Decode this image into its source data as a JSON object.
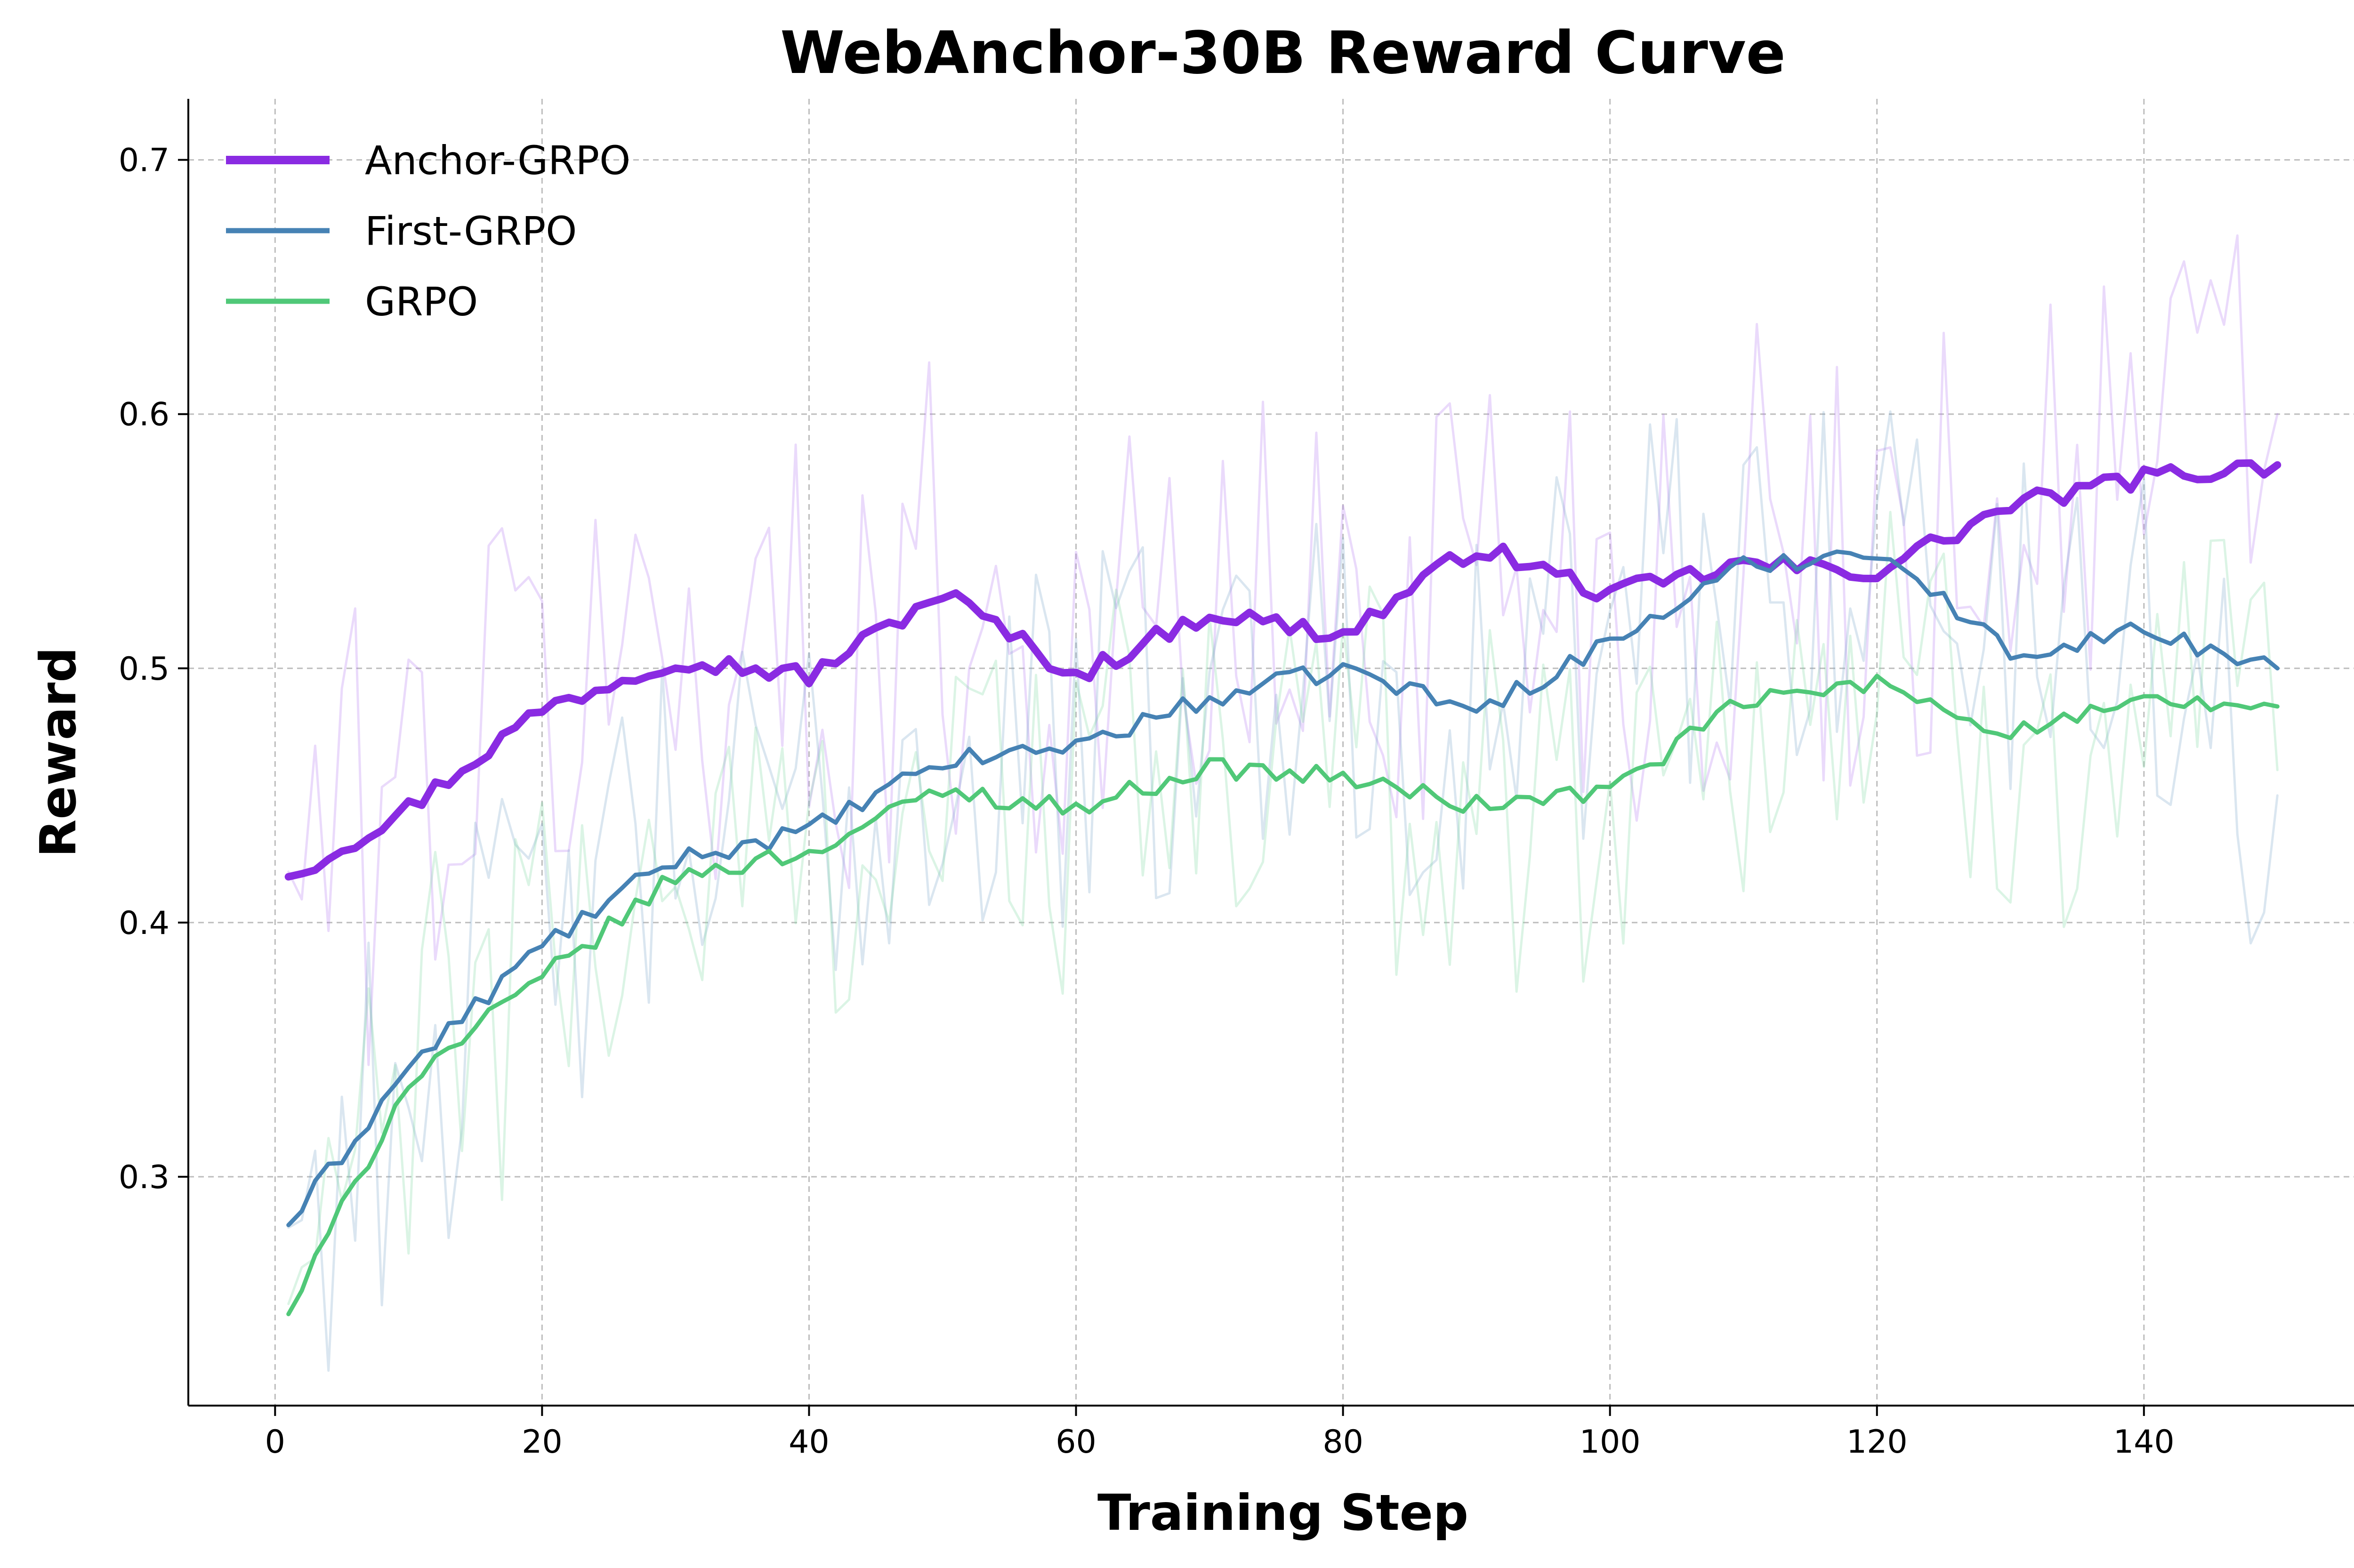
{
  "chart_data": {
    "type": "line",
    "title": "WebAnchor-30B Reward Curve",
    "xlabel": "Training Step",
    "ylabel": "Reward",
    "xlim": [
      -6.5,
      157.5
    ],
    "ylim": [
      0.21,
      0.724
    ],
    "xticks": [
      0,
      20,
      40,
      60,
      80,
      100,
      120,
      140
    ],
    "yticks": [
      0.3,
      0.4,
      0.5,
      0.6,
      0.7
    ],
    "xtick_labels": [
      "0",
      "20",
      "40",
      "60",
      "80",
      "100",
      "120",
      "140"
    ],
    "ytick_labels": [
      "0.3",
      "0.4",
      "0.5",
      "0.6",
      "0.7"
    ],
    "grid": true,
    "legend_position": "top-left",
    "x_anchors": [
      1,
      10,
      20,
      30,
      40,
      50,
      60,
      70,
      80,
      90,
      100,
      110,
      120,
      130,
      140,
      150
    ],
    "series": [
      {
        "name": "Anchor-GRPO",
        "color": "#8a2be2",
        "role": "smoothed",
        "anchors": [
          0.418,
          0.445,
          0.484,
          0.504,
          0.497,
          0.53,
          0.497,
          0.522,
          0.513,
          0.548,
          0.529,
          0.541,
          0.538,
          0.564,
          0.575,
          0.58
        ],
        "noise": 0.004
      },
      {
        "name": "First-GRPO",
        "color": "#4682b4",
        "role": "smoothed",
        "anchors": [
          0.281,
          0.343,
          0.391,
          0.425,
          0.436,
          0.463,
          0.47,
          0.488,
          0.5,
          0.483,
          0.51,
          0.54,
          0.547,
          0.506,
          0.515,
          0.5
        ],
        "noise": 0.004
      },
      {
        "name": "GRPO",
        "color": "#50c878",
        "role": "smoothed",
        "anchors": [
          0.246,
          0.338,
          0.378,
          0.418,
          0.428,
          0.452,
          0.445,
          0.461,
          0.457,
          0.446,
          0.452,
          0.487,
          0.494,
          0.475,
          0.486,
          0.485
        ],
        "noise": 0.004
      },
      {
        "name": "Anchor-GRPO (raw)",
        "color": "#b57bf0",
        "role": "raw",
        "anchors": [
          0.42,
          0.45,
          0.49,
          0.51,
          0.5,
          0.53,
          0.5,
          0.52,
          0.51,
          0.55,
          0.53,
          0.54,
          0.54,
          0.57,
          0.58,
          0.6
        ],
        "noise": 0.06
      },
      {
        "name": "First-GRPO (raw)",
        "color": "#7aa7c9",
        "role": "raw",
        "anchors": [
          0.28,
          0.34,
          0.39,
          0.43,
          0.44,
          0.46,
          0.47,
          0.49,
          0.5,
          0.48,
          0.51,
          0.54,
          0.55,
          0.51,
          0.52,
          0.45
        ],
        "noise": 0.05
      },
      {
        "name": "GRPO (raw)",
        "color": "#7fd9a0",
        "role": "raw",
        "anchors": [
          0.25,
          0.34,
          0.38,
          0.42,
          0.43,
          0.45,
          0.45,
          0.46,
          0.46,
          0.45,
          0.45,
          0.49,
          0.49,
          0.47,
          0.49,
          0.46
        ],
        "noise": 0.05
      }
    ]
  }
}
